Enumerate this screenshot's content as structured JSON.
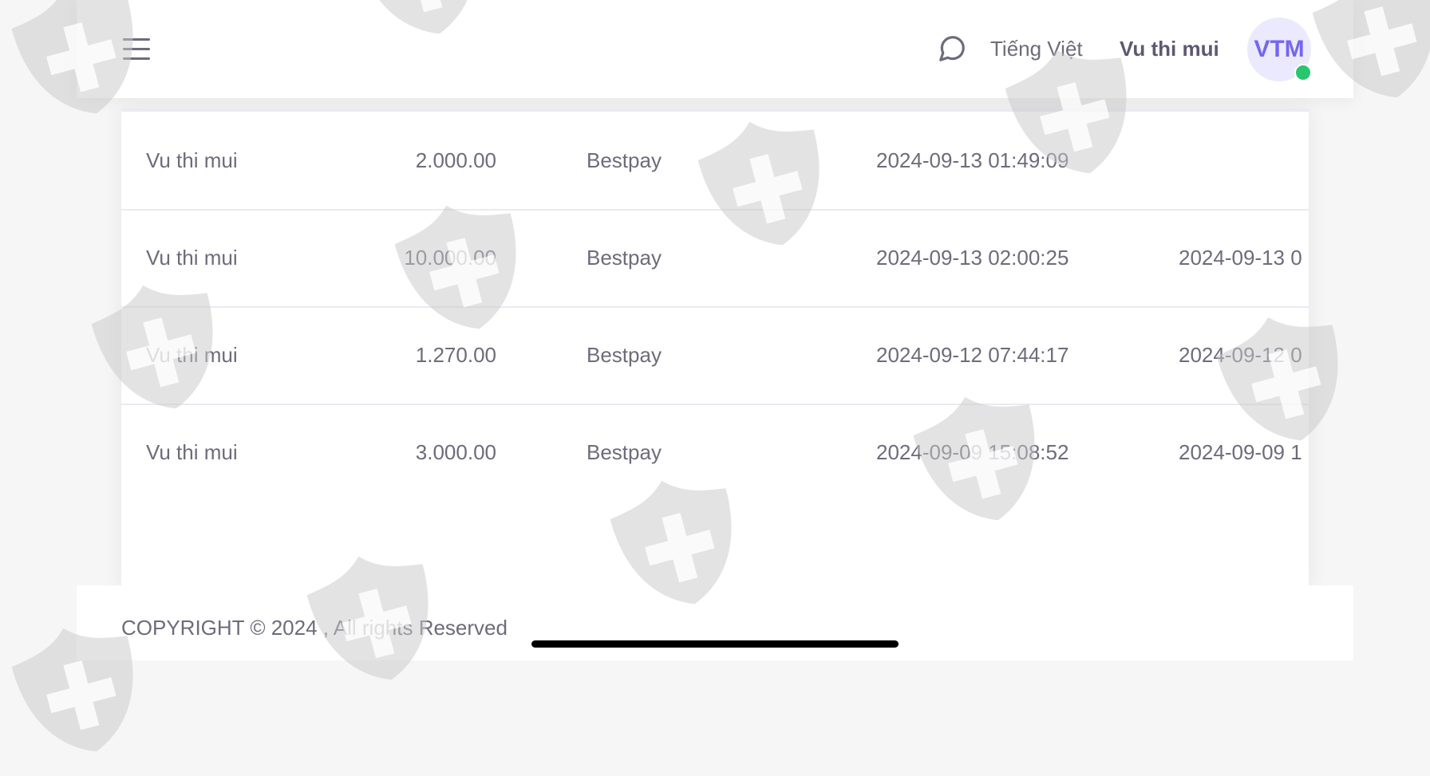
{
  "header": {
    "menu_icon": "hamburger-icon",
    "chat_icon": "chat-bubble-icon",
    "language": "Tiếng Việt",
    "user_name": "Vu thi mui",
    "avatar_initials": "VTM",
    "status": "online",
    "colors": {
      "accent": "#7367f0",
      "avatar_bg": "#ebe9fd",
      "online": "#28c76f"
    }
  },
  "table": {
    "rows": [
      {
        "name": "Vu thi mui",
        "amount": "2.000.00",
        "method": "Bestpay",
        "created": "2024-09-13 01:49:09",
        "updated": ""
      },
      {
        "name": "Vu thi mui",
        "amount": "10.000.00",
        "method": "Bestpay",
        "created": "2024-09-13 02:00:25",
        "updated": "2024-09-13 0"
      },
      {
        "name": "Vu thi mui",
        "amount": "1.270.00",
        "method": "Bestpay",
        "created": "2024-09-12 07:44:17",
        "updated": "2024-09-12 0"
      },
      {
        "name": "Vu thi mui",
        "amount": "3.000.00",
        "method": "Bestpay",
        "created": "2024-09-09 15:08:52",
        "updated": "2024-09-09 1"
      }
    ]
  },
  "footer": {
    "copyright": "COPYRIGHT © 2024 , All rights Reserved"
  },
  "watermark_icon": "shield-cross-icon"
}
